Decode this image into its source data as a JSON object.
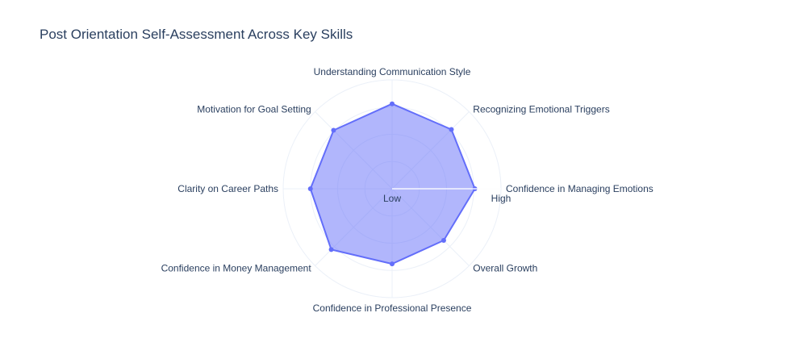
{
  "chart_data": {
    "type": "radar",
    "title": "Post Orientation Self-Assessment Across Key Skills",
    "categories": [
      "Confidence in Managing Emotions",
      "Recognizing Emotional Triggers",
      "Understanding Communication Style",
      "Motivation for Goal Setting",
      "Clarity on Career Paths",
      "Confidence in Money Management",
      "Confidence in Professional Presence",
      "Overall Growth"
    ],
    "series": [
      {
        "values": [
          0.76,
          0.77,
          0.78,
          0.76,
          0.75,
          0.79,
          0.69,
          0.67
        ]
      }
    ],
    "radial_range": [
      0,
      1
    ],
    "radial_tick_labels": [
      "Low",
      "High"
    ],
    "grid": true,
    "colors": {
      "line": "#636efa",
      "fill": "rgba(99,110,250,0.5)",
      "grid": "#ebf0f8",
      "text": "#2a3f5f"
    }
  }
}
